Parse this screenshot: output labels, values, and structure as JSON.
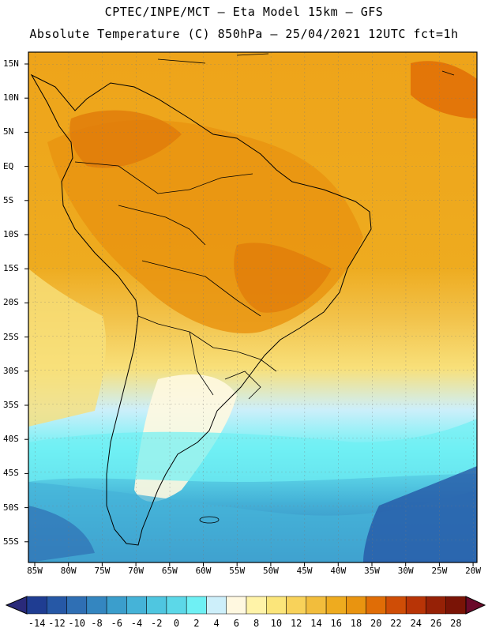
{
  "header": {
    "line1": "CPTEC/INPE/MCT –  Eta Model 15km – GFS",
    "line2": "Absolute Temperature (C) 850hPa – 25/04/2021 12UTC fct=1h"
  },
  "map": {
    "lat_labels": [
      "15N",
      "10N",
      "5N",
      "EQ",
      "5S",
      "10S",
      "15S",
      "20S",
      "25S",
      "30S",
      "35S",
      "40S",
      "45S",
      "50S",
      "55S"
    ],
    "lon_labels": [
      "85W",
      "80W",
      "75W",
      "70W",
      "65W",
      "60W",
      "55W",
      "50W",
      "45W",
      "40W",
      "35W",
      "30W",
      "25W",
      "20W"
    ]
  },
  "colorbar": {
    "labels": [
      "-14",
      "-12",
      "-10",
      "-8",
      "-6",
      "-4",
      "-2",
      "0",
      "2",
      "4",
      "6",
      "8",
      "10",
      "12",
      "14",
      "16",
      "18",
      "20",
      "22",
      "24",
      "26",
      "28"
    ],
    "colors": [
      "#1f3d92",
      "#2658a6",
      "#2f6fb4",
      "#3486c0",
      "#3b9ecc",
      "#45b3d8",
      "#4fc6e0",
      "#5cd8e8",
      "#6ff0f4",
      "#cdeffa",
      "#fff8e0",
      "#fff3a8",
      "#fbe57a",
      "#f8d25a",
      "#f2bd3c",
      "#eeab1f",
      "#e99410",
      "#e06d06",
      "#cf4d06",
      "#b83406",
      "#962106",
      "#7a1406"
    ]
  }
}
